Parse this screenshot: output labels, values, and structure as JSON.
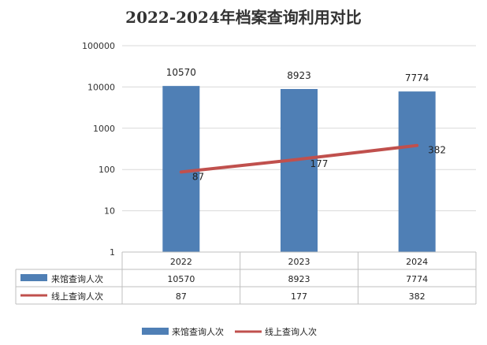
{
  "chart_data": {
    "type": "bar",
    "title": "2022-2024年档案查询利用对比",
    "categories": [
      "2022",
      "2023",
      "2024"
    ],
    "yscale": "log",
    "ylim": [
      1,
      100000
    ],
    "yticks": [
      "1",
      "10",
      "100",
      "1000",
      "10000",
      "100000"
    ],
    "grid": true,
    "legend_position": "bottom",
    "data_table": true,
    "series": [
      {
        "name": "来馆查询人次",
        "type": "bar",
        "color": "#4f7fb5",
        "values": [
          10570,
          8923,
          7774
        ],
        "labels": [
          "10570",
          "8923",
          "7774"
        ]
      },
      {
        "name": "线上查询人次",
        "type": "line",
        "color": "#c0504d",
        "values": [
          87,
          177,
          382
        ],
        "labels": [
          "87",
          "177",
          "382"
        ]
      }
    ]
  }
}
